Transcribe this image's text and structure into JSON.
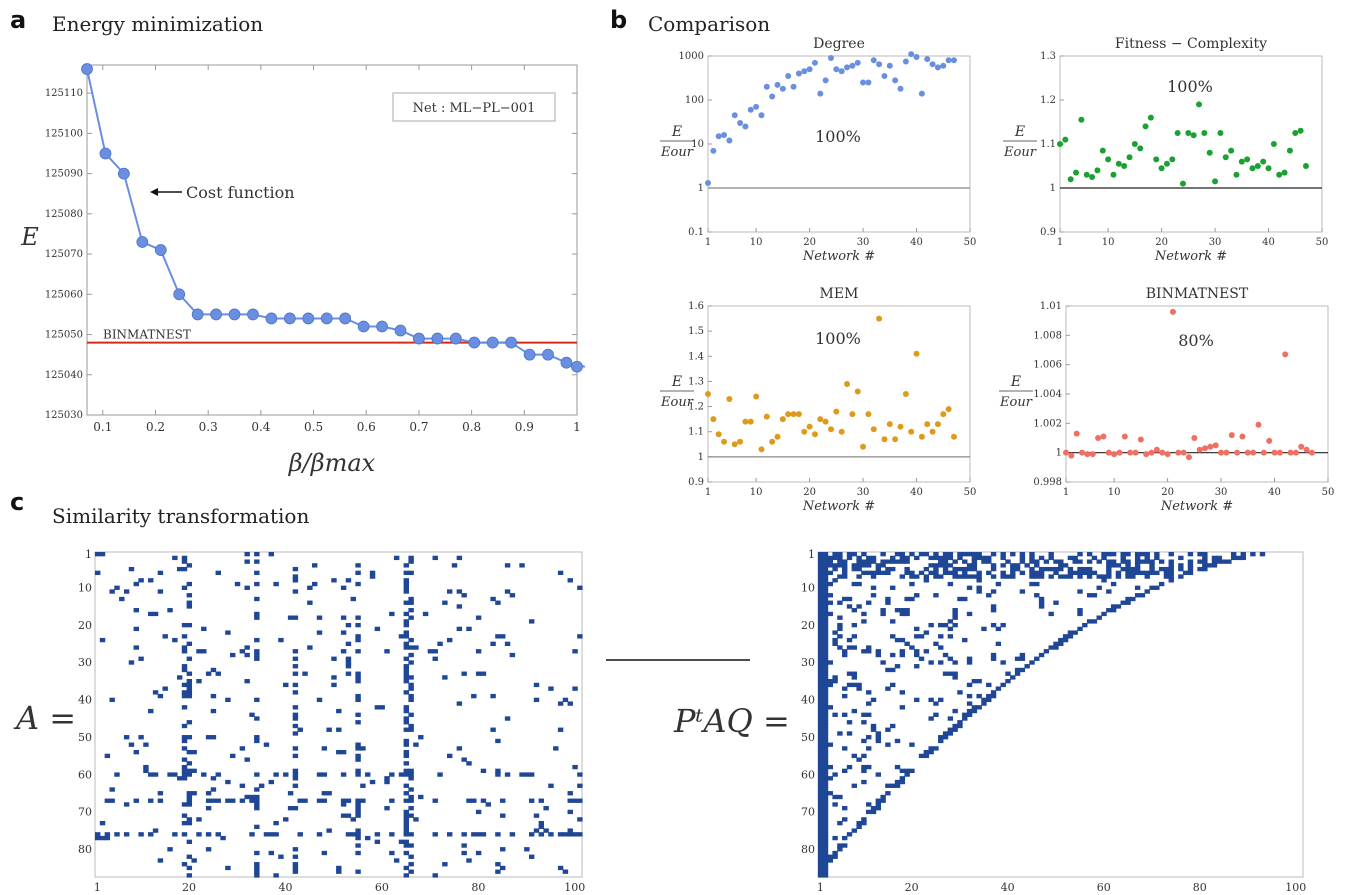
{
  "panels": {
    "a": {
      "letter": "a",
      "title": "Energy minimization"
    },
    "b": {
      "letter": "b",
      "title": "Comparison"
    },
    "c": {
      "letter": "c",
      "title": "Similarity transformation"
    }
  },
  "colors": {
    "blue": "#6a8fe0",
    "green": "#1aa131",
    "orange": "#e09a1a",
    "salmon": "#ef6f62",
    "red": "#d42a1a",
    "matrix": "#1f4796",
    "gray": "#888888"
  },
  "chart_data": [
    {
      "id": "a",
      "type": "line",
      "ylabel": "E",
      "xlabel": "β/βmax",
      "legend_box": "Net : ML−PL−001",
      "annotation": "Cost function",
      "reference_label": "BINMATNEST",
      "reference_value": 125048,
      "xlim": [
        0.07,
        1.0
      ],
      "ylim": [
        125030,
        125117
      ],
      "xticks": [
        0.1,
        0.2,
        0.3,
        0.4,
        0.5,
        0.6,
        0.7,
        0.8,
        0.9,
        1
      ],
      "xtick_labels": [
        "0.1",
        "0.2",
        "0.3",
        "0.4",
        "0.5",
        "0.6",
        "0.7",
        "0.8",
        "0.9",
        "1"
      ],
      "yticks": [
        125030,
        125040,
        125050,
        125060,
        125070,
        125080,
        125090,
        125100,
        125110
      ],
      "x": [
        0.07,
        0.105,
        0.14,
        0.175,
        0.21,
        0.245,
        0.28,
        0.315,
        0.35,
        0.385,
        0.42,
        0.455,
        0.49,
        0.525,
        0.56,
        0.595,
        0.63,
        0.665,
        0.7,
        0.735,
        0.77,
        0.805,
        0.84,
        0.875,
        0.91,
        0.945,
        0.98,
        1.015
      ],
      "y": [
        125116,
        125095,
        125090,
        125073,
        125071,
        125060,
        125055,
        125055,
        125055,
        125055,
        125054,
        125054,
        125054,
        125054,
        125054,
        125052,
        125052,
        125051,
        125049,
        125049,
        125049,
        125048,
        125048,
        125048,
        125045,
        125045,
        125043,
        125042
      ]
    },
    {
      "id": "b1",
      "type": "scatter",
      "title": "Degree",
      "ylabel": "E/Eour",
      "xlabel": "Network #",
      "yscale": "log",
      "percent": "100%",
      "xlim": [
        1,
        50
      ],
      "ylim": [
        0.1,
        1000
      ],
      "yticks": [
        0.1,
        1,
        10,
        100,
        1000
      ],
      "ytick_labels": [
        "0.1",
        "1",
        "10",
        "100",
        "1000"
      ],
      "xticks": [
        1,
        10,
        20,
        30,
        40,
        50
      ],
      "baseline": 1,
      "x": [
        1,
        2,
        3,
        4,
        5,
        6,
        7,
        8,
        9,
        10,
        11,
        12,
        13,
        14,
        15,
        16,
        17,
        18,
        19,
        20,
        21,
        22,
        23,
        24,
        25,
        26,
        27,
        28,
        29,
        30,
        31,
        32,
        33,
        34,
        35,
        36,
        37,
        38,
        39,
        40,
        41,
        42,
        43,
        44,
        45,
        46,
        47
      ],
      "y": [
        1.3,
        7,
        15,
        16,
        12,
        45,
        30,
        25,
        60,
        70,
        45,
        200,
        120,
        220,
        180,
        350,
        200,
        400,
        450,
        500,
        700,
        140,
        280,
        900,
        500,
        450,
        550,
        600,
        700,
        250,
        250,
        800,
        650,
        350,
        600,
        280,
        180,
        750,
        1100,
        950,
        140,
        850,
        650,
        550,
        600,
        800,
        800
      ]
    },
    {
      "id": "b2",
      "type": "scatter",
      "title": "Fitness − Complexity",
      "ylabel": "E/Eour",
      "xlabel": "Network #",
      "percent": "100%",
      "xlim": [
        1,
        50
      ],
      "ylim": [
        0.9,
        1.3
      ],
      "yticks": [
        0.9,
        1,
        1.1,
        1.2,
        1.3
      ],
      "ytick_labels": [
        "0.9",
        "1",
        "1.1",
        "1.2",
        "1.3"
      ],
      "xticks": [
        1,
        10,
        20,
        30,
        40,
        50
      ],
      "baseline": 1,
      "x": [
        1,
        2,
        3,
        4,
        5,
        6,
        7,
        8,
        9,
        10,
        11,
        12,
        13,
        14,
        15,
        16,
        17,
        18,
        19,
        20,
        21,
        22,
        23,
        24,
        25,
        26,
        27,
        28,
        29,
        30,
        31,
        32,
        33,
        34,
        35,
        36,
        37,
        38,
        39,
        40,
        41,
        42,
        43,
        44,
        45,
        46,
        47
      ],
      "y": [
        1.1,
        1.11,
        1.02,
        1.035,
        1.155,
        1.03,
        1.025,
        1.04,
        1.085,
        1.065,
        1.03,
        1.055,
        1.05,
        1.07,
        1.1,
        1.09,
        1.14,
        1.16,
        1.065,
        1.045,
        1.055,
        1.065,
        1.125,
        1.01,
        1.125,
        1.12,
        1.19,
        1.125,
        1.08,
        1.015,
        1.125,
        1.07,
        1.085,
        1.03,
        1.06,
        1.065,
        1.045,
        1.05,
        1.06,
        1.045,
        1.1,
        1.03,
        1.035,
        1.085,
        1.125,
        1.13,
        1.05
      ]
    },
    {
      "id": "b3",
      "type": "scatter",
      "title": "MEM",
      "ylabel": "E/Eour",
      "xlabel": "Network #",
      "percent": "100%",
      "xlim": [
        1,
        50
      ],
      "ylim": [
        0.9,
        1.6
      ],
      "yticks": [
        0.9,
        1,
        1.1,
        1.2,
        1.3,
        1.4,
        1.5,
        1.6
      ],
      "ytick_labels": [
        "0.9",
        "1",
        "1.1",
        "1.2",
        "1.3",
        "1.4",
        "1.5",
        "1.6"
      ],
      "xticks": [
        1,
        10,
        20,
        30,
        40,
        50
      ],
      "baseline": 1,
      "x": [
        1,
        2,
        3,
        4,
        5,
        6,
        7,
        8,
        9,
        10,
        11,
        12,
        13,
        14,
        15,
        16,
        17,
        18,
        19,
        20,
        21,
        22,
        23,
        24,
        25,
        26,
        27,
        28,
        29,
        30,
        31,
        32,
        33,
        34,
        35,
        36,
        37,
        38,
        39,
        40,
        41,
        42,
        43,
        44,
        45,
        46,
        47
      ],
      "y": [
        1.25,
        1.15,
        1.09,
        1.06,
        1.23,
        1.05,
        1.06,
        1.14,
        1.14,
        1.24,
        1.03,
        1.16,
        1.06,
        1.08,
        1.15,
        1.17,
        1.17,
        1.17,
        1.1,
        1.12,
        1.09,
        1.15,
        1.14,
        1.11,
        1.18,
        1.1,
        1.29,
        1.17,
        1.26,
        1.04,
        1.17,
        1.11,
        1.55,
        1.07,
        1.13,
        1.07,
        1.12,
        1.25,
        1.1,
        1.41,
        1.08,
        1.13,
        1.1,
        1.13,
        1.17,
        1.19,
        1.08
      ]
    },
    {
      "id": "b4",
      "type": "scatter",
      "title": "BINMATNEST",
      "ylabel": "E/Eour",
      "xlabel": "Network #",
      "percent": "80%",
      "xlim": [
        1,
        50
      ],
      "ylim": [
        0.998,
        1.01
      ],
      "yticks": [
        0.998,
        1,
        1.002,
        1.004,
        1.006,
        1.008,
        1.01
      ],
      "ytick_labels": [
        "0.998",
        "1",
        "1.002",
        "1.004",
        "1.006",
        "1.008",
        "1.01"
      ],
      "xticks": [
        1,
        10,
        20,
        30,
        40,
        50
      ],
      "baseline": 1,
      "x": [
        1,
        2,
        3,
        4,
        5,
        6,
        7,
        8,
        9,
        10,
        11,
        12,
        13,
        14,
        15,
        16,
        17,
        18,
        19,
        20,
        21,
        22,
        23,
        24,
        25,
        26,
        27,
        28,
        29,
        30,
        31,
        32,
        33,
        34,
        35,
        36,
        37,
        38,
        39,
        40,
        41,
        42,
        43,
        44,
        45,
        46,
        47
      ],
      "y": [
        1.0,
        0.9998,
        1.0013,
        1.0,
        0.9999,
        0.9999,
        1.001,
        1.0011,
        1.0,
        0.9999,
        1.0,
        1.0011,
        1.0,
        1.0,
        1.0009,
        0.9999,
        1.0,
        1.0002,
        1.0,
        0.9999,
        1.0096,
        1.0,
        1.0,
        0.9997,
        1.001,
        1.0002,
        1.0003,
        1.0004,
        1.0005,
        1.0,
        1.0,
        1.0012,
        1.0,
        1.0011,
        1.0,
        1.0,
        1.0019,
        1.0,
        1.0008,
        1.0,
        1.0,
        1.0067,
        1.0,
        1.0,
        1.0004,
        1.0002,
        1.0
      ]
    },
    {
      "id": "c1",
      "type": "heatmap",
      "label": "A =",
      "xticks": [
        1,
        20,
        40,
        60,
        80,
        100
      ],
      "yticks": [
        1,
        10,
        20,
        30,
        40,
        50,
        60,
        70,
        80
      ],
      "rows": 87,
      "cols": 101,
      "variant": "scattered"
    },
    {
      "id": "c2",
      "type": "heatmap",
      "label": "PᵗAQ =",
      "xticks": [
        1,
        20,
        40,
        60,
        80,
        100
      ],
      "yticks": [
        1,
        10,
        20,
        30,
        40,
        50,
        60,
        70,
        80
      ],
      "rows": 87,
      "cols": 101,
      "variant": "nested"
    }
  ]
}
